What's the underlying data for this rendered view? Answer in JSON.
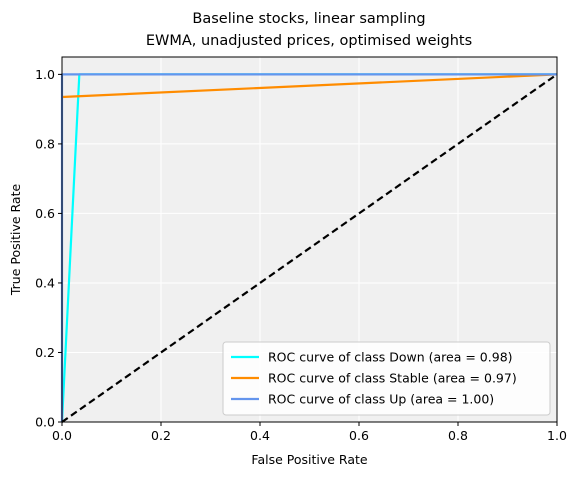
{
  "chart_data": {
    "type": "line",
    "title_line1": "Baseline stocks, linear sampling",
    "title_line2": "EWMA, unadjusted prices, optimised weights",
    "xlabel": "False Positive Rate",
    "ylabel": "True Positive Rate",
    "xlim": [
      0.0,
      1.0
    ],
    "ylim": [
      0.0,
      1.05
    ],
    "x_ticks": [
      0.0,
      0.2,
      0.4,
      0.6,
      0.8,
      1.0
    ],
    "y_ticks": [
      0.0,
      0.2,
      0.4,
      0.6,
      0.8,
      1.0
    ],
    "x_tick_labels": [
      "0.0",
      "0.2",
      "0.4",
      "0.6",
      "0.8",
      "1.0"
    ],
    "y_tick_labels": [
      "0.0",
      "0.2",
      "0.4",
      "0.6",
      "0.8",
      "1.0"
    ],
    "grid": true,
    "plot_background": "#f0f0f0",
    "legend_position": "lower right",
    "series": [
      {
        "name": "ROC curve of class Down (area = 0.98)",
        "color": "#00ffff",
        "x": [
          0.0,
          0.035,
          1.0
        ],
        "y": [
          0.0,
          1.0,
          1.0
        ]
      },
      {
        "name": "ROC curve of class Stable (area = 0.97)",
        "color": "#ff8c00",
        "x": [
          0.0,
          1.0
        ],
        "y": [
          0.935,
          1.0
        ]
      },
      {
        "name": "ROC curve of class Up (area = 1.00)",
        "color": "#6495ed",
        "x": [
          0.0,
          0.0,
          1.0
        ],
        "y": [
          0.0,
          1.0,
          1.0
        ]
      }
    ],
    "reference_line": {
      "color": "#000000",
      "dashed": true,
      "x": [
        0.0,
        1.0
      ],
      "y": [
        0.0,
        1.0
      ]
    }
  }
}
